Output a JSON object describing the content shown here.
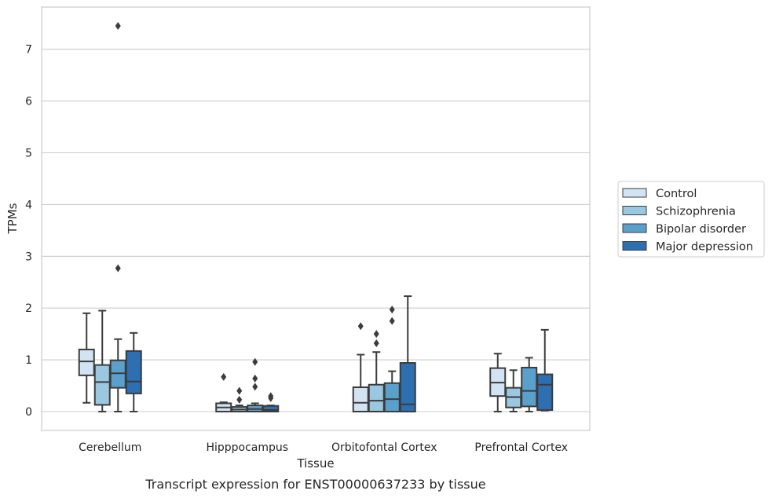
{
  "caption": "Transcript expression for ENST00000637233 by tissue",
  "chart_data": {
    "type": "box",
    "xlabel": "Tissue",
    "ylabel": "TPMs",
    "ylim": [
      -0.36,
      7.8
    ],
    "yticks": [
      0,
      1,
      2,
      3,
      4,
      5,
      6,
      7
    ],
    "grid": "horizontal",
    "legend_position": "right",
    "categories": [
      "Cerebellum",
      "Hipppocampus",
      "Orbitofontal Cortex",
      "Prefrontal Cortex"
    ],
    "series": [
      {
        "name": "Control",
        "color": "#d2e3f3",
        "boxes": [
          {
            "whislo": 0.17,
            "q1": 0.7,
            "med": 0.97,
            "q3": 1.2,
            "whishi": 1.9,
            "fliers": []
          },
          {
            "whislo": 0.0,
            "q1": 0.0,
            "med": 0.08,
            "q3": 0.16,
            "whishi": 0.18,
            "fliers": [
              0.67
            ]
          },
          {
            "whislo": 0.0,
            "q1": 0.0,
            "med": 0.17,
            "q3": 0.47,
            "whishi": 1.1,
            "fliers": [
              1.65
            ]
          },
          {
            "whislo": 0.0,
            "q1": 0.3,
            "med": 0.56,
            "q3": 0.84,
            "whishi": 1.12,
            "fliers": []
          }
        ]
      },
      {
        "name": "Schizophrenia",
        "color": "#9ac8e0",
        "boxes": [
          {
            "whislo": 0.0,
            "q1": 0.13,
            "med": 0.57,
            "q3": 0.9,
            "whishi": 1.95,
            "fliers": []
          },
          {
            "whislo": 0.0,
            "q1": 0.0,
            "med": 0.04,
            "q3": 0.09,
            "whishi": 0.12,
            "fliers": [
              0.23,
              0.4
            ]
          },
          {
            "whislo": 0.0,
            "q1": 0.0,
            "med": 0.21,
            "q3": 0.52,
            "whishi": 1.15,
            "fliers": [
              1.32,
              1.5
            ]
          },
          {
            "whislo": 0.0,
            "q1": 0.08,
            "med": 0.28,
            "q3": 0.46,
            "whishi": 0.8,
            "fliers": []
          }
        ]
      },
      {
        "name": "Bipolar disorder",
        "color": "#5aa0cd",
        "boxes": [
          {
            "whislo": 0.0,
            "q1": 0.46,
            "med": 0.74,
            "q3": 0.99,
            "whishi": 1.4,
            "fliers": [
              2.77,
              7.45
            ]
          },
          {
            "whislo": 0.0,
            "q1": 0.0,
            "med": 0.05,
            "q3": 0.12,
            "whishi": 0.16,
            "fliers": [
              0.48,
              0.64,
              0.96
            ]
          },
          {
            "whislo": 0.0,
            "q1": 0.0,
            "med": 0.24,
            "q3": 0.55,
            "whishi": 0.78,
            "fliers": [
              1.75,
              1.97
            ]
          },
          {
            "whislo": 0.0,
            "q1": 0.1,
            "med": 0.4,
            "q3": 0.85,
            "whishi": 1.04,
            "fliers": []
          }
        ]
      },
      {
        "name": "Major depression",
        "color": "#2d6fb0",
        "boxes": [
          {
            "whislo": 0.0,
            "q1": 0.35,
            "med": 0.58,
            "q3": 1.17,
            "whishi": 1.52,
            "fliers": []
          },
          {
            "whislo": 0.0,
            "q1": 0.0,
            "med": 0.03,
            "q3": 0.11,
            "whishi": 0.12,
            "fliers": [
              0.26,
              0.3
            ]
          },
          {
            "whislo": 0.0,
            "q1": 0.0,
            "med": 0.14,
            "q3": 0.94,
            "whishi": 2.23,
            "fliers": []
          },
          {
            "whislo": 0.02,
            "q1": 0.03,
            "med": 0.52,
            "q3": 0.72,
            "whishi": 1.58,
            "fliers": []
          }
        ]
      }
    ]
  }
}
